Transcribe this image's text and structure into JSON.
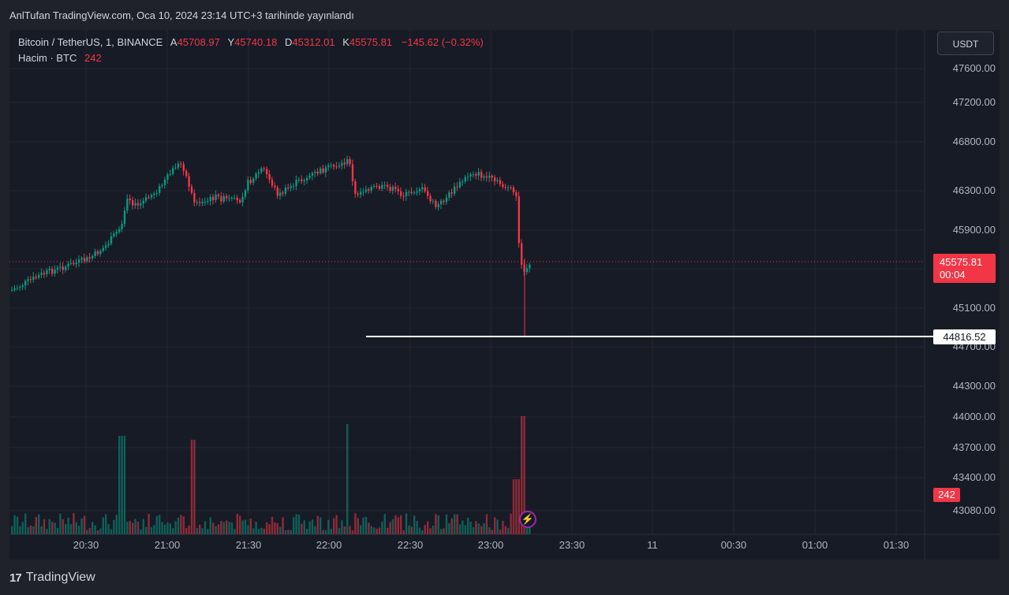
{
  "header": {
    "published_text": "AnlTufan TradingView.com, Oca 10, 2024 23:14 UTC+3 tarihinde yayınlandı"
  },
  "legend": {
    "symbol": "Bitcoin / TetherUS, 1, BINANCE",
    "open_label": "A",
    "open": "45708.97",
    "high_label": "Y",
    "high": "45740.18",
    "low_label": "D",
    "low": "45312.01",
    "close_label": "K",
    "close": "45575.81",
    "change": "−145.62 (−0.32%)",
    "volume_label": "Hacim · BTC",
    "volume": "242"
  },
  "currency_button": "USDT",
  "price_axis": [
    "47600.00",
    "47200.00",
    "46800.00",
    "46300.00",
    "45900.00",
    "45100.00",
    "44700.00",
    "44300.00",
    "44000.00",
    "43700.00",
    "43400.00",
    "43080.00"
  ],
  "last_price": {
    "price": "45575.81",
    "countdown": "00:04"
  },
  "horizontal_level": "44816.52",
  "volume_badge": "242",
  "time_axis": [
    "20:30",
    "21:00",
    "21:30",
    "22:00",
    "22:30",
    "23:00",
    "23:30",
    "11",
    "00:30",
    "01:00",
    "01:30"
  ],
  "colors": {
    "up": "#089981",
    "down": "#f23645",
    "background": "#171b26",
    "grid": "#242733",
    "level_line": "#ffffff"
  },
  "icons": {
    "alert": "lightning-bolt-icon",
    "brand": "tradingview-logo-icon"
  },
  "brand": {
    "name": "TradingView",
    "logo_text": "17"
  }
}
